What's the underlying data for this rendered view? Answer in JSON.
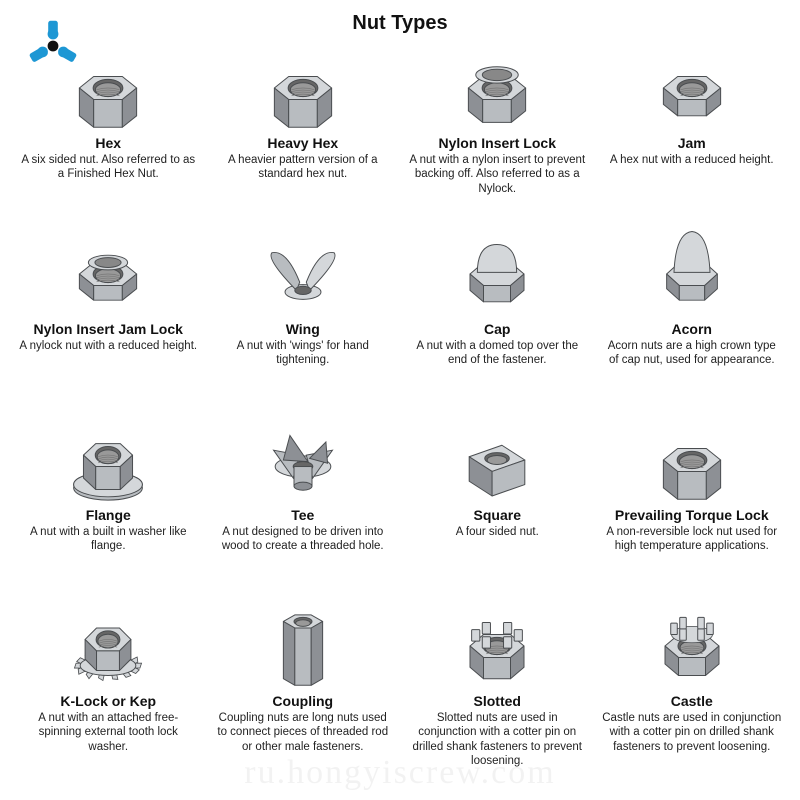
{
  "title": "Nut Types",
  "logo_color": "#1d97d4",
  "watermark": "ru.hongyiscrew.com",
  "nut_fill": "#b8bcc0",
  "nut_stroke": "#4a4d50",
  "nut_light": "#d4d7da",
  "nut_dark": "#8d9095",
  "items": [
    {
      "name": "Hex",
      "desc": "A six sided nut. Also referred to as a Finished Hex Nut.",
      "shape": "hex"
    },
    {
      "name": "Heavy Hex",
      "desc": "A heavier pattern version of a standard hex nut.",
      "shape": "hex"
    },
    {
      "name": "Nylon Insert Lock",
      "desc": "A nut with a nylon insert to prevent backing off. Also referred to as a Nylock.",
      "shape": "nylock"
    },
    {
      "name": "Jam",
      "desc": "A hex nut with a reduced height.",
      "shape": "hexlow"
    },
    {
      "name": "Nylon Insert Jam Lock",
      "desc": "A nylock nut with a reduced height.",
      "shape": "nylocklow"
    },
    {
      "name": "Wing",
      "desc": "A nut with 'wings' for hand tightening.",
      "shape": "wing"
    },
    {
      "name": "Cap",
      "desc": "A nut with a domed top over the end of the fastener.",
      "shape": "cap"
    },
    {
      "name": "Acorn",
      "desc": "Acorn nuts are a high crown type of cap nut, used for appearance.",
      "shape": "acorn"
    },
    {
      "name": "Flange",
      "desc": "A nut with a built in washer like flange.",
      "shape": "flange"
    },
    {
      "name": "Tee",
      "desc": "A nut designed to be driven into wood to create a threaded hole.",
      "shape": "tee"
    },
    {
      "name": "Square",
      "desc": "A four sided nut.",
      "shape": "square"
    },
    {
      "name": "Prevailing Torque Lock",
      "desc": "A non-reversible lock nut used for high temperature applications.",
      "shape": "hex"
    },
    {
      "name": "K-Lock or Kep",
      "desc": "A nut with an attached free-spinning external tooth lock washer.",
      "shape": "klock"
    },
    {
      "name": "Coupling",
      "desc": "Coupling nuts are long nuts used to connect pieces of threaded rod or other male fasteners.",
      "shape": "coupling"
    },
    {
      "name": "Slotted",
      "desc": "Slotted nuts are used in conjunction with a cotter pin on drilled shank fasteners to prevent loosening.",
      "shape": "slotted"
    },
    {
      "name": "Castle",
      "desc": "Castle nuts are used in conjunction with a cotter pin on drilled shank fasteners to prevent loosening.",
      "shape": "castle"
    }
  ]
}
